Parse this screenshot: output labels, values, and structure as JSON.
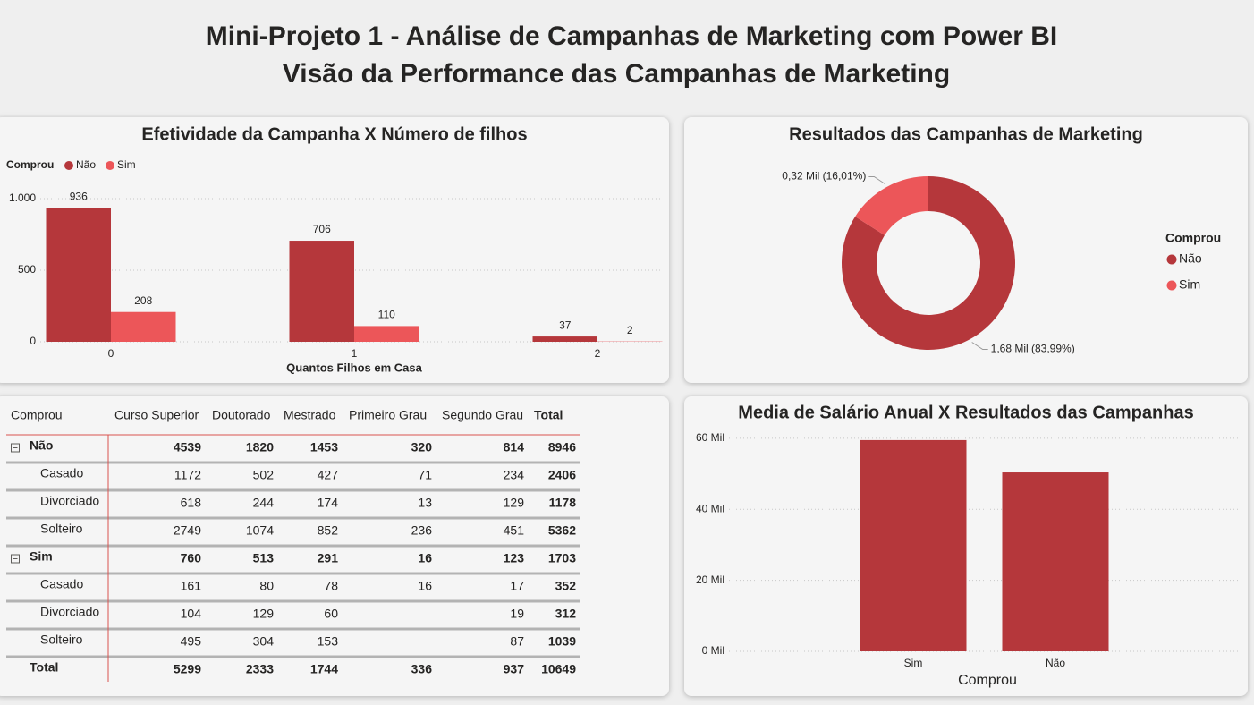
{
  "header": {
    "title": "Mini-Projeto 1 - Análise de Campanhas de Marketing com Power BI",
    "subtitle": "Visão da Performance das Campanhas de Marketing"
  },
  "chart_data": [
    {
      "type": "bar",
      "title": "Efetividade da Campanha X Número de filhos",
      "legend_title": "Comprou",
      "categories": [
        "0",
        "1",
        "2"
      ],
      "x_label": "Quantos Filhos em Casa",
      "series": [
        {
          "name": "Não",
          "color": "#b5373b",
          "values": [
            936,
            706,
            37
          ]
        },
        {
          "name": "Sim",
          "color": "#ec5659",
          "values": [
            208,
            110,
            2
          ]
        }
      ],
      "ylim": [
        0,
        1075
      ],
      "yticks": [
        0,
        500,
        {
          "value": 1000,
          "label": "1.000"
        }
      ],
      "grid": true
    },
    {
      "type": "donut",
      "title": "Resultados das Campanhas de Marketing",
      "legend_title": "Comprou",
      "categories": [
        "Não",
        "Sim"
      ],
      "values": [
        1.68,
        0.32
      ],
      "value_labels": [
        "1,68 Mil (83,99%)",
        "0,32 Mil (16,01%)"
      ],
      "colors": [
        "#b5373b",
        "#ec5659"
      ]
    },
    {
      "type": "bar",
      "title": "Media de Salário Anual X Resultados das Campanhas",
      "categories": [
        "Sim",
        "Não"
      ],
      "values": [
        59.5,
        50.4
      ],
      "color": "#b5373b",
      "x_label": "Comprou",
      "ylim": [
        0,
        62
      ],
      "yticks": [
        {
          "value": 0,
          "label": "0 Mil"
        },
        {
          "value": 20,
          "label": "20 Mil"
        },
        {
          "value": 40,
          "label": "40 Mil"
        },
        {
          "value": 60,
          "label": "60 Mil"
        }
      ],
      "grid": true
    }
  ],
  "table": {
    "columns": [
      "Comprou",
      "Curso Superior",
      "Doutorado",
      "Mestrado",
      "Primeiro Grau",
      "Segundo Grau",
      "Total"
    ],
    "groups": [
      {
        "name": "Não",
        "values": [
          4539,
          1820,
          1453,
          320,
          814,
          8946
        ],
        "children": [
          {
            "name": "Casado",
            "values": [
              1172,
              502,
              427,
              71,
              234,
              2406
            ]
          },
          {
            "name": "Divorciado",
            "values": [
              618,
              244,
              174,
              13,
              129,
              1178
            ]
          },
          {
            "name": "Solteiro",
            "values": [
              2749,
              1074,
              852,
              236,
              451,
              5362
            ]
          }
        ]
      },
      {
        "name": "Sim",
        "values": [
          760,
          513,
          291,
          16,
          123,
          1703
        ],
        "children": [
          {
            "name": "Casado",
            "values": [
              161,
              80,
              78,
              16,
              17,
              352
            ]
          },
          {
            "name": "Divorciado",
            "values": [
              104,
              129,
              60,
              null,
              19,
              312
            ]
          },
          {
            "name": "Solteiro",
            "values": [
              495,
              304,
              153,
              null,
              87,
              1039
            ]
          }
        ]
      }
    ],
    "total": {
      "name": "Total",
      "values": [
        5299,
        2333,
        1744,
        336,
        937,
        10649
      ]
    }
  }
}
